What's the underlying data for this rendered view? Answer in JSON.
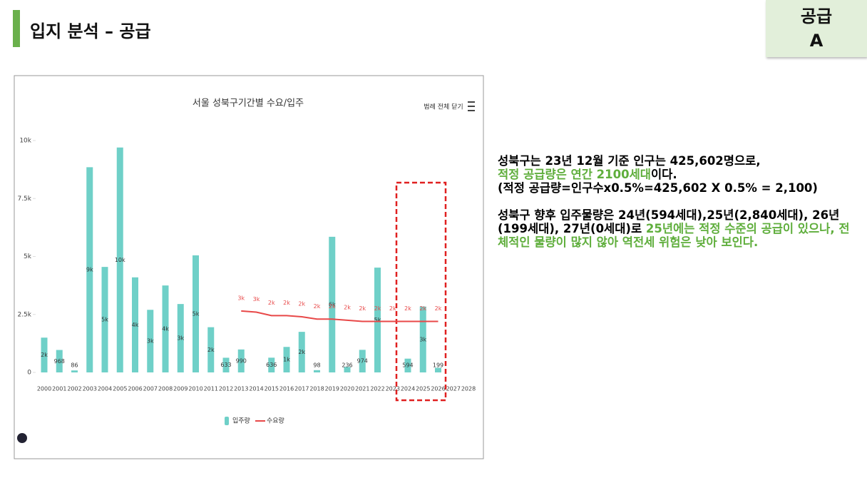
{
  "header": {
    "title": "입지 분석 – 공급"
  },
  "badge": {
    "line1": "공급",
    "line2": "A"
  },
  "toolbar": {
    "button": "범례 전체 닫기"
  },
  "notes": {
    "p1": {
      "text1": "성북구는 23년 12월 기준 인구는 425,602명으로,",
      "highlight": "적정 공급량은 연간 2100세대",
      "text2": "이다.",
      "text3": "(적정 공급량=인구수x0.5%=425,602 X 0.5% = 2,100)"
    },
    "p2": {
      "text1": "성북구 향후 입주물량은 24년(594세대),25년(2,840세대), 26년(199세대), 27년(0세대)로",
      "highlight": "25년에는 적정 수준의 공급이 있으나, 전체적인 물량이 많지 않아 역전세 위험은 낮아 보인다."
    }
  },
  "chart_data": {
    "type": "bar",
    "title": "서울 성북구기간별 수요/입주",
    "categories": [
      "2000",
      "2001",
      "2002",
      "2003",
      "2004",
      "2005",
      "2006",
      "2007",
      "2008",
      "2009",
      "2010",
      "2011",
      "2012",
      "2013",
      "2014",
      "2015",
      "2016",
      "2017",
      "2018",
      "2019",
      "2020",
      "2021",
      "2022",
      "2023",
      "2024",
      "2025",
      "2026",
      "2027",
      "2028"
    ],
    "series": [
      {
        "name": "입주량",
        "type": "bar",
        "color": "#6fd0c8",
        "values": [
          1500,
          968,
          86,
          8850,
          4550,
          9700,
          4100,
          2700,
          3750,
          2950,
          5050,
          1950,
          633,
          990,
          null,
          636,
          1100,
          1750,
          98,
          5850,
          236,
          974,
          4520,
          null,
          594,
          2840,
          199,
          null,
          null
        ],
        "value_labels": [
          "2k",
          "968",
          "86",
          "9k",
          "5k",
          "10k",
          "4k",
          "3k",
          "4k",
          "3k",
          "5k",
          "2k",
          "633",
          "990",
          null,
          "636",
          "1k",
          "2k",
          "98",
          "6k",
          "236",
          "974",
          "5k",
          null,
          "594",
          "3k",
          "199",
          null,
          null
        ]
      },
      {
        "name": "수요량",
        "type": "line",
        "color": "#e84848",
        "values": [
          null,
          null,
          null,
          null,
          null,
          null,
          null,
          null,
          null,
          null,
          null,
          null,
          null,
          2650,
          2600,
          2450,
          2450,
          2400,
          2300,
          2300,
          2250,
          2200,
          2200,
          2200,
          2200,
          2200,
          2200,
          null,
          null
        ],
        "value_labels": [
          null,
          null,
          null,
          null,
          null,
          null,
          null,
          null,
          null,
          null,
          null,
          null,
          null,
          "3k",
          "3k",
          "2k",
          "2k",
          "2k",
          "2k",
          "2k",
          "2k",
          "2k",
          "2k",
          "2k",
          "2k",
          "2k",
          "2k",
          null,
          null
        ]
      }
    ],
    "ylim": [
      0,
      10000
    ],
    "yticks": [
      0,
      {
        "value": 2500,
        "label": "2.5k"
      },
      {
        "value": 5000,
        "label": "5k"
      },
      {
        "value": 7500,
        "label": "7.5k"
      },
      {
        "value": 10000,
        "label": "10k"
      }
    ]
  }
}
